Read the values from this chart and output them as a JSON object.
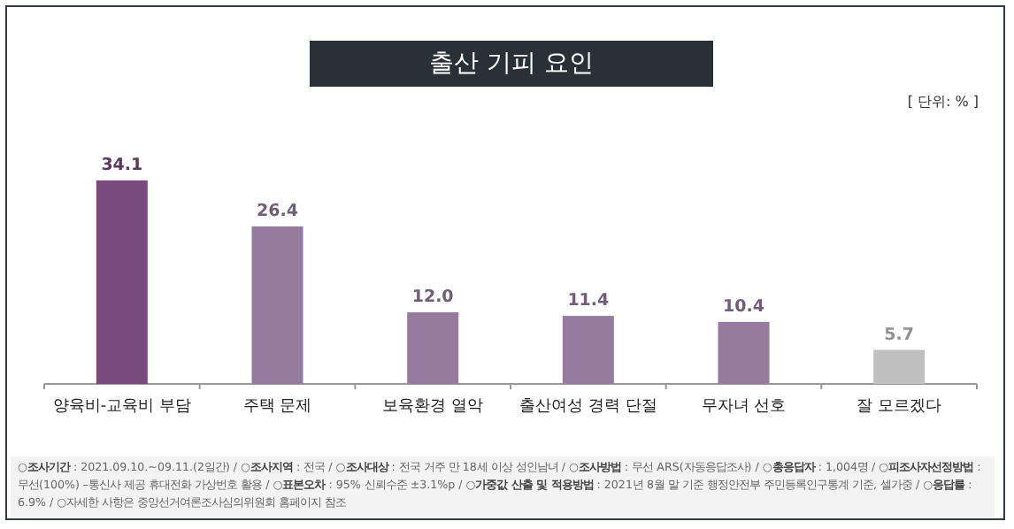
{
  "chart_data": {
    "type": "bar",
    "title": "출산 기피 요인",
    "subtitle": "[ 단위: % ]",
    "categories": [
      "양육비-교육비 부담",
      "주택 문제",
      "보육환경 열악",
      "출산여성 경력 단절",
      "무자녀 선호",
      "잘 모르겠다"
    ],
    "values": [
      34.1,
      26.4,
      12.0,
      11.4,
      10.4,
      5.7
    ],
    "colors": [
      "#7a4a7c",
      "#957c9f",
      "#957c9f",
      "#957c9f",
      "#957c9f",
      "#c0c0c0"
    ],
    "value_labels": [
      "34.1",
      "26.4",
      "12.0",
      "11.4",
      "10.4",
      "5.7"
    ],
    "annotations": [
      "○**조사기간** : 2021.09.10.~09.11.(2일간) / ○**조사지역** : 전국 / ○**조사대상** : 전국 거주 만 18세 이상 성인남녀 / ○**조사방법** : 무선 ARS(자동응답조사) / ○**총응답자** : 1,004명 / ○**피조사자선정방법** : 무선(100%) –통신사 제공 휴대전화 가상번호 활용 / ○**표본오차** : 95% 신뢰수준 ±3.1%p / ○**가중값 산출 및 적용방법** : 2021년 8월 말 기준 행정안전부 주민등록인구통계 기준, 셀가중 / ○**응답률** : 6.9% / ○자세한 사항은 중앙선거여론조사심의위원회 홈페이지 참조"
    ]
  }
}
